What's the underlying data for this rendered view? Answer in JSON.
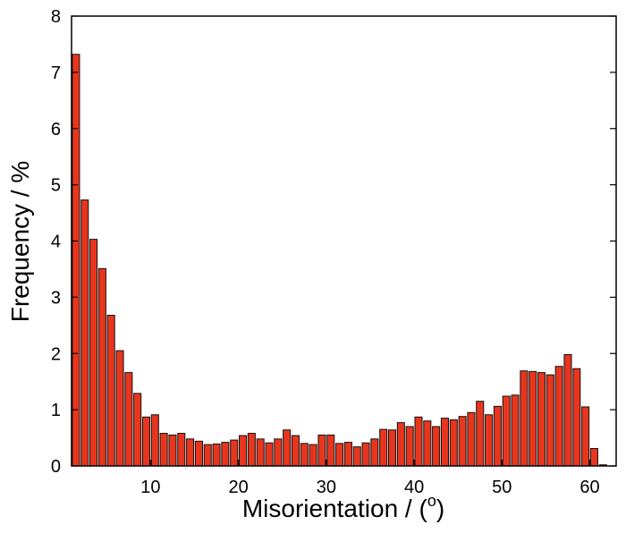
{
  "chart_data": {
    "type": "bar",
    "xlabel": "Misorientation / (",
    "xlabel_superscript": "o",
    "xlabel_suffix": ")",
    "ylabel": "Frequency / %",
    "xlim": [
      1,
      63
    ],
    "ylim": [
      0,
      8
    ],
    "x_ticks": [
      10,
      20,
      30,
      40,
      50,
      60
    ],
    "y_ticks": [
      0,
      1,
      2,
      3,
      4,
      5,
      6,
      7,
      8
    ],
    "bar_color": "#e8361e",
    "grid": false,
    "x": [
      2,
      3,
      4,
      5,
      6,
      7,
      8,
      9,
      10,
      11,
      12,
      13,
      14,
      15,
      16,
      17,
      18,
      19,
      20,
      21,
      22,
      23,
      24,
      25,
      26,
      27,
      28,
      29,
      30,
      31,
      32,
      33,
      34,
      35,
      36,
      37,
      38,
      39,
      40,
      41,
      42,
      43,
      44,
      45,
      46,
      47,
      48,
      49,
      50,
      51,
      52,
      53,
      54,
      55,
      56,
      57,
      58,
      59,
      60,
      61,
      62
    ],
    "values": [
      7.32,
      4.73,
      4.03,
      3.51,
      2.68,
      2.05,
      1.66,
      1.29,
      0.87,
      0.91,
      0.58,
      0.55,
      0.58,
      0.48,
      0.44,
      0.38,
      0.39,
      0.42,
      0.46,
      0.54,
      0.58,
      0.48,
      0.41,
      0.48,
      0.64,
      0.54,
      0.4,
      0.38,
      0.55,
      0.55,
      0.4,
      0.42,
      0.34,
      0.41,
      0.48,
      0.65,
      0.64,
      0.77,
      0.7,
      0.87,
      0.8,
      0.7,
      0.85,
      0.82,
      0.88,
      0.95,
      1.15,
      0.91,
      1.06,
      1.24,
      1.26,
      1.69,
      1.68,
      1.66,
      1.62,
      1.77,
      1.98,
      1.73,
      1.05,
      0.31,
      0.02
    ]
  }
}
